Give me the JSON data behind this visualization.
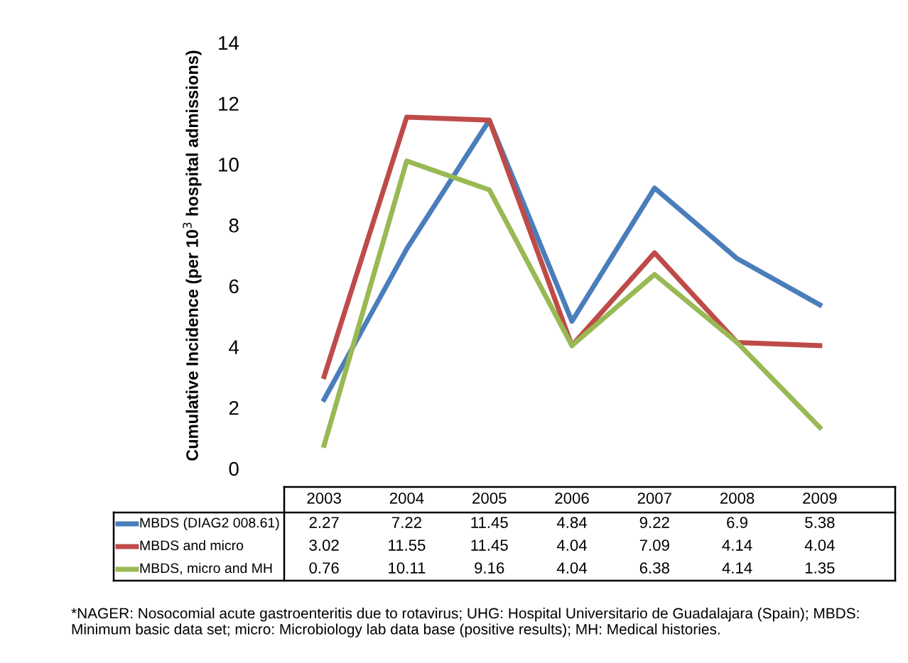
{
  "chart_data": {
    "type": "line",
    "ylabel": "Cumulative Incidence (per 10$^{3}$ hospital admissions)",
    "categories": [
      "2003",
      "2004",
      "2005",
      "2006",
      "2007",
      "2008",
      "2009"
    ],
    "series": [
      {
        "name": "MBDS (DIAG2 008.61)",
        "color": "#4a7ebb",
        "values": [
          2.27,
          7.22,
          11.45,
          4.84,
          9.22,
          6.9,
          5.38
        ]
      },
      {
        "name": "MBDS and micro",
        "color": "#be4b48",
        "values": [
          3.02,
          11.55,
          11.45,
          4.04,
          7.09,
          4.14,
          4.04
        ]
      },
      {
        "name": "MBDS, micro and MH",
        "color": "#98b954",
        "values": [
          0.76,
          10.11,
          9.16,
          4.04,
          6.38,
          4.14,
          1.35
        ]
      }
    ],
    "ylim": [
      0,
      14
    ],
    "yticks": [
      0,
      2,
      4,
      6,
      8,
      10,
      12,
      14
    ],
    "grid": false,
    "legend": "bottom left",
    "marker": "none",
    "line_style": "solid",
    "data_labels": true,
    "annotations": [
      "*NAGER: Nosocomial acute gastroenteritis due to rotavirus; UHG: Hospital Universitario de Guadalajara (Spain); MBDS: Minimum basic data set; micro: Microbiology lab data base (positive results); MH: Medical histories."
    ]
  }
}
